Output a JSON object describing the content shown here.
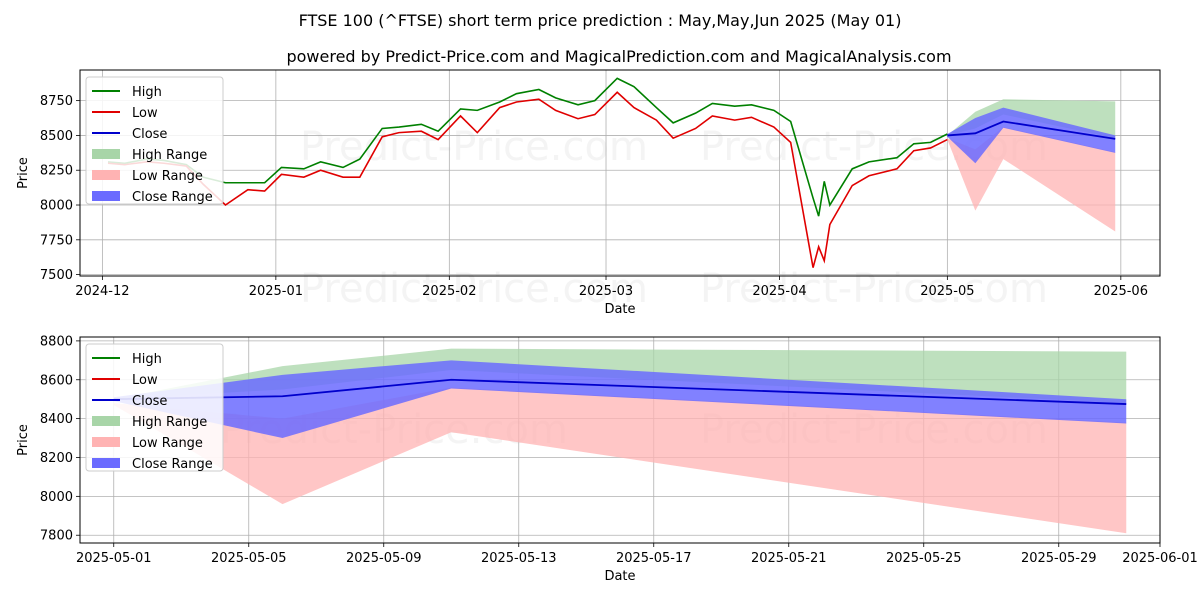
{
  "title": "FTSE 100 (^FTSE) short term price prediction : May,May,Jun 2025 (May 01)",
  "subtitle": "powered by Predict-Price.com and MagicalPrediction.com and MagicalAnalysis.com",
  "watermark": "Predict-Price.com",
  "colors": {
    "high": "#008000",
    "low": "#e00000",
    "close": "#0000cc",
    "high_range": "#a8d5a8",
    "low_range": "#ffb3b3",
    "close_range": "#6b6bff",
    "grid": "#b0b0b0"
  },
  "legend": [
    "High",
    "Low",
    "Close",
    "High Range",
    "Low Range",
    "Close Range"
  ],
  "chart_data": [
    {
      "type": "line",
      "xlabel": "Date",
      "ylabel": "Price",
      "x_ticks": [
        "2024-12",
        "2025-01",
        "2025-02",
        "2025-03",
        "2025-04",
        "2025-05",
        "2025-06"
      ],
      "y_ticks": [
        7500,
        7750,
        8000,
        8250,
        8500,
        8750
      ],
      "xlim": [
        "2024-11-27",
        "2025-06-08"
      ],
      "ylim": [
        7490,
        8970
      ],
      "grid": true,
      "legend_position": "upper-left",
      "history_dates": [
        "2024-12-02",
        "2024-12-05",
        "2024-12-09",
        "2024-12-12",
        "2024-12-16",
        "2024-12-19",
        "2024-12-23",
        "2024-12-27",
        "2024-12-30",
        "2025-01-02",
        "2025-01-06",
        "2025-01-09",
        "2025-01-13",
        "2025-01-16",
        "2025-01-20",
        "2025-01-23",
        "2025-01-27",
        "2025-01-30",
        "2025-02-03",
        "2025-02-06",
        "2025-02-10",
        "2025-02-13",
        "2025-02-17",
        "2025-02-20",
        "2025-02-24",
        "2025-02-27",
        "2025-03-03",
        "2025-03-06",
        "2025-03-10",
        "2025-03-13",
        "2025-03-17",
        "2025-03-20",
        "2025-03-24",
        "2025-03-27",
        "2025-03-31",
        "2025-04-03",
        "2025-04-07",
        "2025-04-08",
        "2025-04-09",
        "2025-04-10",
        "2025-04-14",
        "2025-04-17",
        "2025-04-22",
        "2025-04-25",
        "2025-04-28",
        "2025-05-01"
      ],
      "series": [
        {
          "name": "High",
          "values": [
            8310,
            8300,
            8330,
            8320,
            8290,
            8200,
            8160,
            8160,
            8160,
            8270,
            8260,
            8310,
            8270,
            8330,
            8550,
            8560,
            8580,
            8530,
            8690,
            8680,
            8740,
            8800,
            8830,
            8770,
            8720,
            8750,
            8910,
            8850,
            8700,
            8590,
            8660,
            8730,
            8710,
            8720,
            8680,
            8600,
            8050,
            7920,
            8170,
            8000,
            8260,
            8310,
            8340,
            8440,
            8450,
            8510
          ]
        },
        {
          "name": "Low",
          "values": [
            8300,
            8290,
            8310,
            8300,
            8280,
            8150,
            8000,
            8110,
            8100,
            8220,
            8200,
            8250,
            8200,
            8200,
            8490,
            8520,
            8530,
            8470,
            8640,
            8520,
            8700,
            8740,
            8760,
            8680,
            8620,
            8650,
            8810,
            8700,
            8610,
            8480,
            8550,
            8640,
            8610,
            8630,
            8560,
            8450,
            7550,
            7700,
            7600,
            7860,
            8140,
            8210,
            8260,
            8390,
            8410,
            8470
          ]
        }
      ],
      "forecast_start_date": "2025-05-01"
    },
    {
      "type": "area",
      "xlabel": "Date",
      "ylabel": "Price",
      "x_ticks": [
        "2025-05-01",
        "2025-05-05",
        "2025-05-09",
        "2025-05-13",
        "2025-05-17",
        "2025-05-21",
        "2025-05-25",
        "2025-05-29",
        "2025-06-01"
      ],
      "y_ticks": [
        7800,
        8000,
        8200,
        8400,
        8600,
        8800
      ],
      "xlim": [
        "2025-04-30",
        "2025-06-01"
      ],
      "ylim": [
        7760,
        8820
      ],
      "grid": true,
      "legend_position": "upper-left",
      "x": [
        "2025-05-01",
        "2025-05-06",
        "2025-05-11",
        "2025-05-31"
      ],
      "close": [
        8500,
        8515,
        8600,
        8475
      ],
      "high_range": {
        "upper": [
          8500,
          8670,
          8760,
          8745
        ],
        "lower": [
          8500,
          8550,
          8650,
          8480
        ]
      },
      "low_range": {
        "upper": [
          8480,
          8400,
          8560,
          8380
        ],
        "lower": [
          8470,
          7960,
          8330,
          7810
        ]
      },
      "close_range": {
        "upper": [
          8510,
          8625,
          8700,
          8500
        ],
        "lower": [
          8490,
          8300,
          8555,
          8375
        ]
      }
    }
  ]
}
